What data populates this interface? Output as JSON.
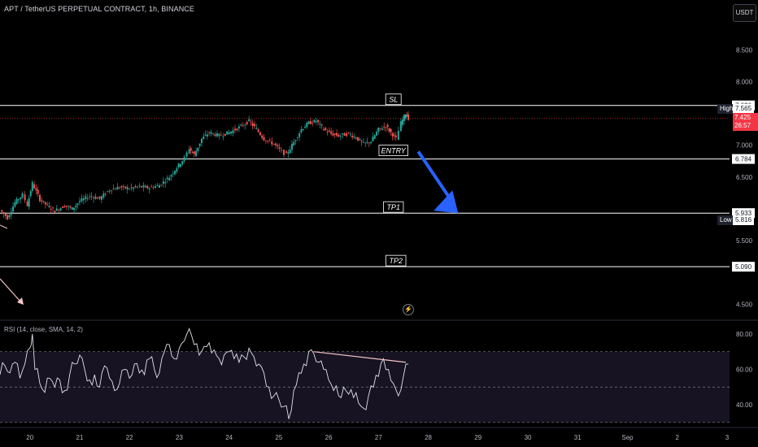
{
  "header": {
    "symbol_title": "APT / TetherUS PERPETUAL CONTRACT, 1h, BINANCE",
    "currency": "USDT",
    "rsi_title": "RSI (14, close, SMA, 14, 2)",
    "lightning_icon": "lightning-icon"
  },
  "colors": {
    "up": "#26a69a",
    "down": "#ef5350",
    "level_line": "#ffffff",
    "arrow": "#2962ff",
    "rsi_line": "#e0e3eb",
    "rsi_band": "#2a2240",
    "rsi_ma": "#f7c6c6",
    "last_price": "#f23645"
  },
  "chart_data": [
    {
      "type": "candlestick",
      "title": "APT / TetherUS PERPETUAL CONTRACT, 1h, BINANCE",
      "x_axis": {
        "ticks": [
          "20",
          "21",
          "22",
          "23",
          "24",
          "25",
          "26",
          "27",
          "28",
          "29",
          "30",
          "31",
          "Sep",
          "2",
          "3"
        ],
        "tick_days": [
          20,
          21,
          22,
          23,
          24,
          25,
          26,
          27,
          28,
          29,
          30,
          31,
          32,
          33,
          34
        ],
        "range_days": [
          19.4,
          34.05
        ]
      },
      "y_axis": {
        "ticks": [
          "8.500",
          "8.000",
          "7.000",
          "6.500",
          "5.500",
          "4.500"
        ],
        "tick_values": [
          8.5,
          8.0,
          7.0,
          6.5,
          5.5,
          4.5
        ],
        "range": [
          4.3,
          8.9
        ]
      },
      "series_path": [
        [
          19.4,
          5.98
        ],
        [
          19.55,
          5.86
        ],
        [
          19.7,
          6.1
        ],
        [
          19.85,
          6.22
        ],
        [
          19.95,
          6.06
        ],
        [
          20.05,
          6.4
        ],
        [
          20.2,
          6.15
        ],
        [
          20.35,
          6.05
        ],
        [
          20.5,
          5.97
        ],
        [
          20.7,
          6.05
        ],
        [
          20.85,
          6.0
        ],
        [
          21.0,
          6.12
        ],
        [
          21.2,
          6.2
        ],
        [
          21.4,
          6.16
        ],
        [
          21.6,
          6.3
        ],
        [
          21.8,
          6.34
        ],
        [
          22.0,
          6.32
        ],
        [
          22.2,
          6.35
        ],
        [
          22.4,
          6.33
        ],
        [
          22.6,
          6.37
        ],
        [
          22.8,
          6.5
        ],
        [
          22.95,
          6.65
        ],
        [
          23.1,
          6.8
        ],
        [
          23.2,
          6.95
        ],
        [
          23.3,
          6.85
        ],
        [
          23.45,
          7.1
        ],
        [
          23.6,
          7.2
        ],
        [
          23.8,
          7.15
        ],
        [
          24.0,
          7.2
        ],
        [
          24.2,
          7.28
        ],
        [
          24.4,
          7.38
        ],
        [
          24.55,
          7.25
        ],
        [
          24.7,
          7.1
        ],
        [
          24.9,
          7.02
        ],
        [
          25.05,
          6.9
        ],
        [
          25.15,
          6.85
        ],
        [
          25.3,
          7.05
        ],
        [
          25.45,
          7.25
        ],
        [
          25.6,
          7.35
        ],
        [
          25.75,
          7.38
        ],
        [
          25.9,
          7.25
        ],
        [
          26.05,
          7.18
        ],
        [
          26.2,
          7.15
        ],
        [
          26.4,
          7.18
        ],
        [
          26.55,
          7.12
        ],
        [
          26.7,
          7.02
        ],
        [
          26.85,
          7.06
        ],
        [
          27.0,
          7.25
        ],
        [
          27.15,
          7.3
        ],
        [
          27.25,
          7.2
        ],
        [
          27.35,
          7.1
        ],
        [
          27.45,
          7.35
        ],
        [
          27.55,
          7.5
        ],
        [
          27.6,
          7.425
        ]
      ],
      "levels": [
        {
          "label": "SL",
          "price": 7.626,
          "price_label": "7.626"
        },
        {
          "label": "ENTRY",
          "price": 6.784,
          "price_label": "6.784"
        },
        {
          "label": "TP1",
          "price": 5.933,
          "price_label": "5.933"
        },
        {
          "label": "TP2",
          "price": 5.09,
          "price_label": "5.090"
        }
      ],
      "high": {
        "label": "High",
        "value": "7.565",
        "price": 7.565
      },
      "low": {
        "label": "Low",
        "value": "5.816",
        "price": 5.816
      },
      "last_price": {
        "value": "7.425",
        "countdown": "26:57",
        "price": 7.425
      },
      "projection_arrow": {
        "from": [
          27.8,
          6.9
        ],
        "to": [
          28.6,
          5.933
        ]
      }
    },
    {
      "type": "line",
      "title": "RSI (14, close, SMA, 14, 2)",
      "y_axis": {
        "ticks": [
          "80.00",
          "60.00",
          "40.00"
        ],
        "tick_values": [
          80,
          60,
          40
        ],
        "range": [
          29,
          85
        ]
      },
      "bands": {
        "upper": 70,
        "middle": 50,
        "lower": 30
      },
      "x_days": [
        19.4,
        19.5,
        19.6,
        19.7,
        19.8,
        19.9,
        20.0,
        20.05,
        20.1,
        20.2,
        20.3,
        20.4,
        20.5,
        20.6,
        20.7,
        20.8,
        20.9,
        21.0,
        21.1,
        21.2,
        21.3,
        21.4,
        21.5,
        21.6,
        21.7,
        21.8,
        21.9,
        22.0,
        22.1,
        22.2,
        22.3,
        22.4,
        22.5,
        22.6,
        22.7,
        22.8,
        22.9,
        23.0,
        23.1,
        23.2,
        23.3,
        23.4,
        23.5,
        23.6,
        23.7,
        23.8,
        23.9,
        24.0,
        24.1,
        24.2,
        24.3,
        24.4,
        24.5,
        24.6,
        24.7,
        24.8,
        24.9,
        25.0,
        25.1,
        25.2,
        25.3,
        25.4,
        25.5,
        25.6,
        25.7,
        25.8,
        25.9,
        26.0,
        26.1,
        26.2,
        26.3,
        26.4,
        26.5,
        26.6,
        26.7,
        26.8,
        26.9,
        27.0,
        27.1,
        27.2,
        27.3,
        27.4,
        27.5,
        27.6
      ],
      "values": [
        57,
        62,
        58,
        64,
        55,
        63,
        72,
        80,
        60,
        52,
        47,
        55,
        50,
        54,
        48,
        57,
        63,
        68,
        60,
        54,
        57,
        50,
        62,
        55,
        48,
        52,
        60,
        55,
        63,
        58,
        57,
        66,
        60,
        58,
        70,
        74,
        66,
        72,
        76,
        83,
        74,
        68,
        73,
        75,
        71,
        66,
        68,
        70,
        66,
        64,
        67,
        72,
        67,
        63,
        58,
        50,
        45,
        43,
        39,
        32,
        48,
        58,
        63,
        70,
        69,
        64,
        60,
        54,
        48,
        45,
        50,
        46,
        44,
        41,
        38,
        45,
        50,
        56,
        66,
        60,
        52,
        45,
        56,
        63
      ],
      "divergence_line": {
        "from": [
          25.7,
          70
        ],
        "to": [
          27.55,
          64
        ]
      }
    }
  ]
}
